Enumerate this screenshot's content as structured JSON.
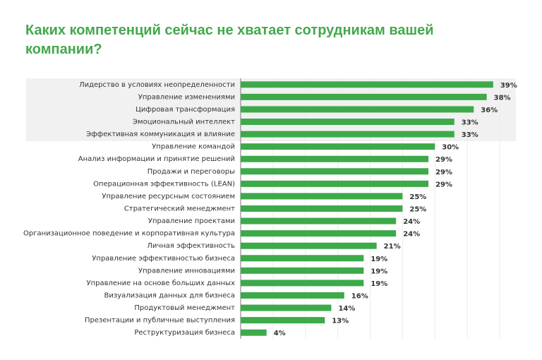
{
  "chart_data": {
    "type": "bar",
    "orientation": "horizontal",
    "title": "Каких компетенций сейчас не хватает сотрудникам вашей компании?",
    "categories": [
      "Лидерство в условиях неопределенности",
      "Управление изменениями",
      "Цифровая трансформация",
      "Эмоциональный интеллект",
      "Эффективная коммуникация и влияние",
      "Управление командой",
      "Анализ информации и принятие решений",
      "Продажи и переговоры",
      "Операционная эффективность (LEAN)",
      "Управление ресурсным состоянием",
      "Стратегический менеджмент",
      "Управление проектами",
      "Организационное поведение и корпоративная культура",
      "Личная эффективность",
      "Управление эффективностью бизнеса",
      "Управление инновациями",
      "Управление на основе больших данных",
      "Визуализация данных для бизнеса",
      "Продуктовый менеджмент",
      "Презентации и публичные выступления",
      "Реструктуризация бизнеса"
    ],
    "values": [
      39,
      38,
      36,
      33,
      33,
      30,
      29,
      29,
      29,
      25,
      25,
      24,
      24,
      21,
      19,
      19,
      19,
      16,
      14,
      13,
      4
    ],
    "value_labels": [
      "39%",
      "38%",
      "36%",
      "33%",
      "33%",
      "30%",
      "29%",
      "29%",
      "29%",
      "25%",
      "25%",
      "24%",
      "24%",
      "21%",
      "19%",
      "19%",
      "19%",
      "16%",
      "14%",
      "13%",
      "4%"
    ],
    "color": "#3daa4a",
    "xlim": [
      0,
      40
    ],
    "xticks": [
      0,
      5,
      10,
      15,
      20,
      25,
      30,
      35,
      40
    ],
    "grid": true
  }
}
